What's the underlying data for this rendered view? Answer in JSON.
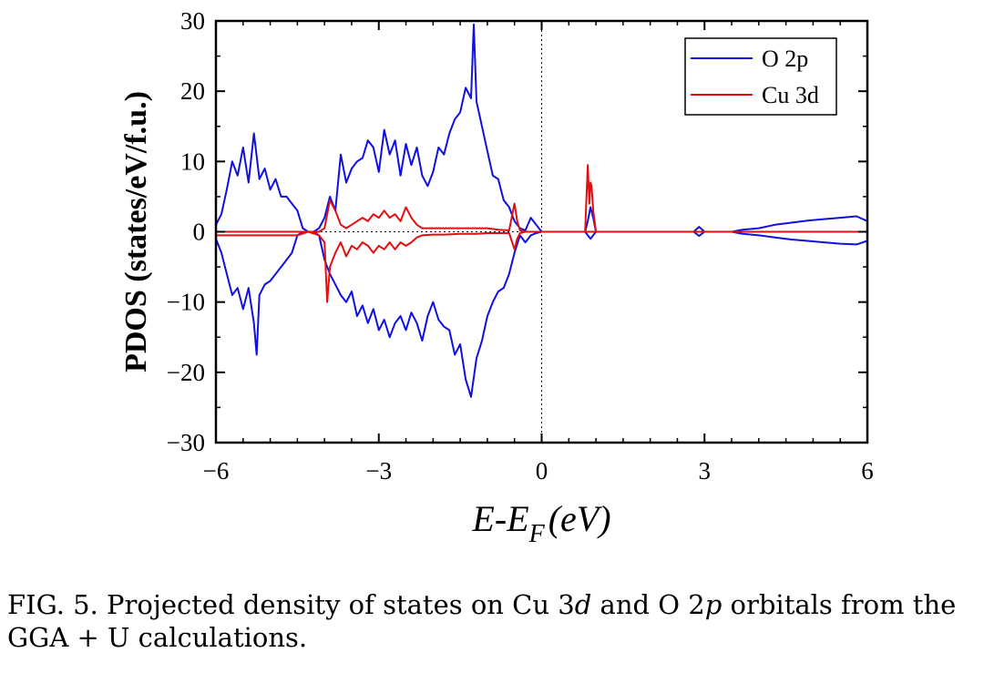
{
  "chart_data": {
    "type": "line",
    "title": "",
    "xlabel": "E-E_F (eV)",
    "xlabel_parts": {
      "e": "E",
      "dash": "-",
      "ef": "E",
      "sub": "F",
      "unit": "(eV)"
    },
    "ylabel": "PDOS (states/eV/f.u.)",
    "xlim": [
      -6,
      6
    ],
    "ylim": [
      -30,
      30
    ],
    "xticks": [
      -6,
      -3,
      0,
      3,
      6
    ],
    "xtick_labels": [
      "−6",
      "−3",
      "0",
      "3",
      "6"
    ],
    "yticks": [
      -30,
      -20,
      -10,
      0,
      10,
      20,
      30
    ],
    "ytick_labels": [
      "−30",
      "−20",
      "−10",
      "0",
      "10",
      "20",
      "30"
    ],
    "fermi_level": 0,
    "legend": {
      "placement": "top-right",
      "entries": [
        "O 2p",
        "Cu 3d"
      ]
    },
    "series": [
      {
        "name": "O 2p",
        "color": "#1010e0",
        "spin_up": {
          "x": [
            -6.0,
            -5.9,
            -5.8,
            -5.7,
            -5.6,
            -5.5,
            -5.4,
            -5.3,
            -5.2,
            -5.1,
            -5.0,
            -4.9,
            -4.8,
            -4.7,
            -4.6,
            -4.5,
            -4.4,
            -4.3,
            -4.2,
            -4.1,
            -4.0,
            -3.9,
            -3.8,
            -3.7,
            -3.6,
            -3.5,
            -3.4,
            -3.3,
            -3.2,
            -3.1,
            -3.0,
            -2.9,
            -2.8,
            -2.7,
            -2.6,
            -2.5,
            -2.4,
            -2.3,
            -2.2,
            -2.1,
            -2.0,
            -1.9,
            -1.8,
            -1.7,
            -1.6,
            -1.5,
            -1.4,
            -1.3,
            -1.25,
            -1.2,
            -1.1,
            -1.0,
            -0.9,
            -0.8,
            -0.7,
            -0.6,
            -0.5,
            -0.4,
            -0.3,
            -0.2,
            -0.1,
            0.0,
            0.5,
            0.8,
            0.85,
            0.9,
            0.95,
            1.0,
            1.5,
            2.0,
            2.5,
            2.8,
            2.9,
            3.0,
            3.3,
            3.5,
            3.7,
            4.0,
            4.3,
            4.6,
            4.9,
            5.2,
            5.5,
            5.8,
            6.0
          ],
          "values": [
            1.0,
            2.5,
            6.0,
            10.0,
            8.0,
            12.0,
            7.0,
            14.0,
            7.5,
            9.0,
            6.0,
            7.5,
            5.0,
            5.0,
            4.0,
            3.0,
            0.5,
            0.0,
            0.0,
            0.5,
            2.0,
            5.0,
            3.0,
            11.0,
            7.0,
            9.0,
            10.0,
            10.5,
            13.0,
            12.0,
            8.5,
            14.5,
            11.0,
            13.0,
            8.0,
            12.5,
            9.5,
            12.0,
            8.0,
            6.5,
            8.5,
            12.0,
            11.0,
            14.0,
            16.0,
            17.0,
            20.5,
            19.0,
            29.5,
            18.5,
            15.0,
            11.5,
            8.0,
            7.5,
            4.5,
            3.5,
            1.5,
            0.5,
            0.2,
            2.0,
            1.0,
            0.0,
            0.0,
            0.0,
            1.5,
            3.5,
            2.0,
            0.0,
            0.0,
            0.0,
            0.0,
            0.0,
            0.7,
            0.0,
            0.0,
            0.0,
            0.3,
            0.5,
            1.0,
            1.3,
            1.6,
            1.8,
            2.0,
            2.2,
            1.5
          ]
        },
        "spin_down": {
          "x": [
            -6.0,
            -5.9,
            -5.8,
            -5.7,
            -5.6,
            -5.5,
            -5.4,
            -5.3,
            -5.25,
            -5.2,
            -5.1,
            -5.0,
            -4.9,
            -4.8,
            -4.7,
            -4.6,
            -4.5,
            -4.4,
            -4.3,
            -4.2,
            -4.1,
            -4.0,
            -3.9,
            -3.8,
            -3.7,
            -3.6,
            -3.5,
            -3.4,
            -3.3,
            -3.2,
            -3.1,
            -3.0,
            -2.9,
            -2.8,
            -2.7,
            -2.6,
            -2.5,
            -2.4,
            -2.3,
            -2.2,
            -2.1,
            -2.0,
            -1.9,
            -1.8,
            -1.7,
            -1.6,
            -1.5,
            -1.4,
            -1.3,
            -1.2,
            -1.1,
            -1.0,
            -0.9,
            -0.8,
            -0.7,
            -0.6,
            -0.5,
            -0.4,
            -0.3,
            -0.2,
            -0.1,
            0.0,
            0.5,
            0.8,
            0.85,
            0.9,
            0.95,
            1.0,
            1.5,
            2.0,
            2.5,
            2.8,
            2.9,
            3.0,
            3.3,
            3.5,
            3.7,
            4.0,
            4.3,
            4.6,
            4.9,
            5.2,
            5.5,
            5.8,
            6.0
          ],
          "values": [
            -1.0,
            -3.0,
            -6.0,
            -9.0,
            -8.0,
            -11.0,
            -8.0,
            -13.0,
            -17.5,
            -9.0,
            -7.5,
            -7.0,
            -6.0,
            -5.0,
            -4.0,
            -3.0,
            -0.5,
            0.0,
            0.0,
            0.0,
            -0.5,
            -4.0,
            -6.0,
            -7.5,
            -9.0,
            -10.0,
            -8.5,
            -12.0,
            -10.5,
            -13.0,
            -11.0,
            -14.0,
            -12.5,
            -15.0,
            -13.0,
            -12.0,
            -14.0,
            -11.5,
            -13.0,
            -15.5,
            -12.0,
            -10.0,
            -12.5,
            -13.5,
            -14.0,
            -17.5,
            -16.0,
            -21.0,
            -23.5,
            -18.0,
            -15.5,
            -12.0,
            -10.0,
            -8.5,
            -8.0,
            -6.0,
            -3.0,
            -0.5,
            -1.5,
            -0.5,
            -0.2,
            0.0,
            0.0,
            0.0,
            -0.5,
            -1.0,
            -0.5,
            0.0,
            0.0,
            0.0,
            0.0,
            0.0,
            -0.6,
            0.0,
            0.0,
            0.0,
            -0.3,
            -0.5,
            -0.8,
            -1.1,
            -1.3,
            -1.5,
            -1.7,
            -1.8,
            -1.3
          ]
        }
      },
      {
        "name": "Cu 3d",
        "color": "#e01010",
        "spin_up": {
          "x": [
            -6.0,
            -5.5,
            -5.0,
            -4.5,
            -4.3,
            -4.1,
            -4.0,
            -3.9,
            -3.8,
            -3.7,
            -3.6,
            -3.5,
            -3.4,
            -3.3,
            -3.2,
            -3.1,
            -3.0,
            -2.9,
            -2.8,
            -2.7,
            -2.6,
            -2.5,
            -2.4,
            -2.3,
            -2.2,
            -2.0,
            -1.8,
            -1.5,
            -1.2,
            -1.0,
            -0.8,
            -0.6,
            -0.5,
            -0.45,
            -0.4,
            -0.3,
            0.0,
            0.8,
            0.85,
            0.88,
            0.9,
            0.92,
            0.95,
            1.0,
            2.0,
            6.0
          ],
          "values": [
            0.0,
            0.0,
            0.0,
            0.0,
            0.0,
            0.0,
            0.5,
            4.5,
            3.0,
            1.0,
            0.5,
            1.0,
            1.5,
            2.0,
            1.5,
            2.5,
            2.0,
            3.0,
            2.0,
            2.5,
            1.5,
            3.5,
            2.0,
            1.0,
            0.5,
            0.5,
            0.5,
            0.5,
            0.5,
            0.5,
            0.3,
            0.2,
            4.0,
            1.5,
            0.2,
            0.0,
            0.0,
            0.0,
            9.5,
            4.0,
            7.0,
            6.5,
            3.0,
            0.0,
            0.0,
            0.0
          ]
        },
        "spin_down": {
          "x": [
            -6.0,
            -5.5,
            -5.0,
            -4.5,
            -4.3,
            -4.1,
            -4.0,
            -3.95,
            -3.9,
            -3.8,
            -3.7,
            -3.6,
            -3.5,
            -3.4,
            -3.3,
            -3.2,
            -3.1,
            -3.0,
            -2.9,
            -2.8,
            -2.7,
            -2.6,
            -2.5,
            -2.4,
            -2.3,
            -2.2,
            -2.0,
            -1.8,
            -1.5,
            -1.2,
            -1.0,
            -0.8,
            -0.6,
            -0.5,
            -0.45,
            -0.4,
            -0.3,
            0.0,
            6.0
          ],
          "values": [
            -0.5,
            -0.5,
            -0.5,
            -0.5,
            0.0,
            -0.5,
            -1.5,
            -10.0,
            -5.0,
            -3.0,
            -1.5,
            -3.5,
            -2.0,
            -2.5,
            -1.5,
            -2.0,
            -3.0,
            -2.0,
            -2.5,
            -1.5,
            -2.5,
            -1.5,
            -2.0,
            -1.5,
            -0.8,
            -0.5,
            -0.4,
            -0.4,
            -0.3,
            -0.3,
            -0.2,
            -0.2,
            -0.2,
            -2.5,
            -1.0,
            -0.2,
            0.0,
            0.0,
            0.0
          ]
        }
      }
    ]
  },
  "caption": {
    "prefix": "FIG. 5.  Projected density of states on Cu 3",
    "d_italic": "d",
    "middle": " and O 2",
    "p_italic": "p",
    "suffix": " orbitals from the GGA + U calculations."
  }
}
